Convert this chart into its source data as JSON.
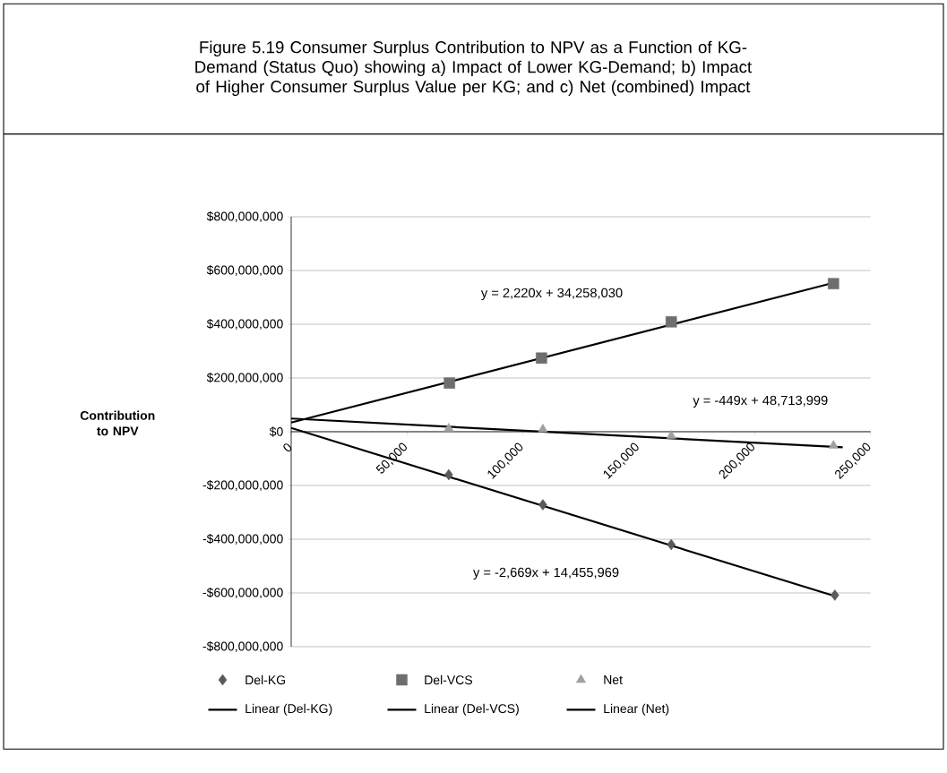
{
  "chart_data": {
    "type": "scatter",
    "title": "Figure 5.19 Consumer Surplus Contribution to NPV as a Function of KG-Demand (Status Quo) showing a) Impact of Lower KG-Demand; b) Impact of Higher Consumer Surplus Value per KG; and c) Net (combined) Impact",
    "ylabel": "Contribution to NPV",
    "xlim": [
      0,
      250000
    ],
    "xticks": [
      0,
      {
        "value": 50000,
        "label": "50,000"
      },
      {
        "value": 100000,
        "label": "100,000"
      },
      {
        "value": 150000,
        "label": "150,000"
      },
      {
        "value": 200000,
        "label": "200,000"
      },
      {
        "value": 250000,
        "label": "250,000"
      }
    ],
    "ylim": [
      -800000000,
      800000000
    ],
    "yticks": [
      {
        "value": -800000000,
        "label": "-$800,000,000"
      },
      {
        "value": -600000000,
        "label": "-$600,000,000"
      },
      {
        "value": -400000000,
        "label": "-$400,000,000"
      },
      {
        "value": -200000000,
        "label": "-$200,000,000"
      },
      {
        "value": 0,
        "label": "$0"
      },
      {
        "value": 200000000,
        "label": "$200,000,000"
      },
      {
        "value": 400000000,
        "label": "$400,000,000"
      },
      {
        "value": 600000000,
        "label": "$600,000,000"
      },
      {
        "value": 800000000,
        "label": "$800,000,000"
      }
    ],
    "grid": "y",
    "legend": "bottom",
    "series": [
      {
        "name": "Del-KG",
        "marker": "diamond",
        "color": "#5a5a5a",
        "x": [
          68000,
          108600,
          164000,
          234600
        ],
        "values": [
          -160000000,
          -272000000,
          -420000000,
          -608000000
        ]
      },
      {
        "name": "Del-VCS",
        "marker": "square",
        "color": "#6e6e6e",
        "x": [
          68300,
          108000,
          164000,
          234000
        ],
        "values": [
          181000000,
          274000000,
          409000000,
          551000000
        ]
      },
      {
        "name": "Net",
        "marker": "triangle",
        "color": "#a0a0a0",
        "x": [
          68000,
          108600,
          164000,
          234000
        ],
        "values": [
          12000000,
          9000000,
          -15000000,
          -52000000
        ]
      },
      {
        "name": "Linear (Del-KG)",
        "type": "line",
        "line_style": "solid",
        "color": "#000000",
        "x": [
          0,
          234600
        ],
        "values": [
          14000000,
          -612000000
        ]
      },
      {
        "name": "Linear (Del-VCS)",
        "type": "line",
        "line_style": "solid",
        "color": "#000000",
        "x": [
          0,
          234000
        ],
        "values": [
          34000000,
          554000000
        ]
      },
      {
        "name": "Linear (Net)",
        "type": "line",
        "line_style": "solid",
        "color": "#000000",
        "x": [
          0,
          238000
        ],
        "values": [
          49000000,
          -58000000
        ]
      }
    ],
    "annotations": [
      "y = 2,220x + 34,258,030",
      "y = -449x + 48,713,999",
      "y = -2,669x + 14,455,969"
    ]
  }
}
